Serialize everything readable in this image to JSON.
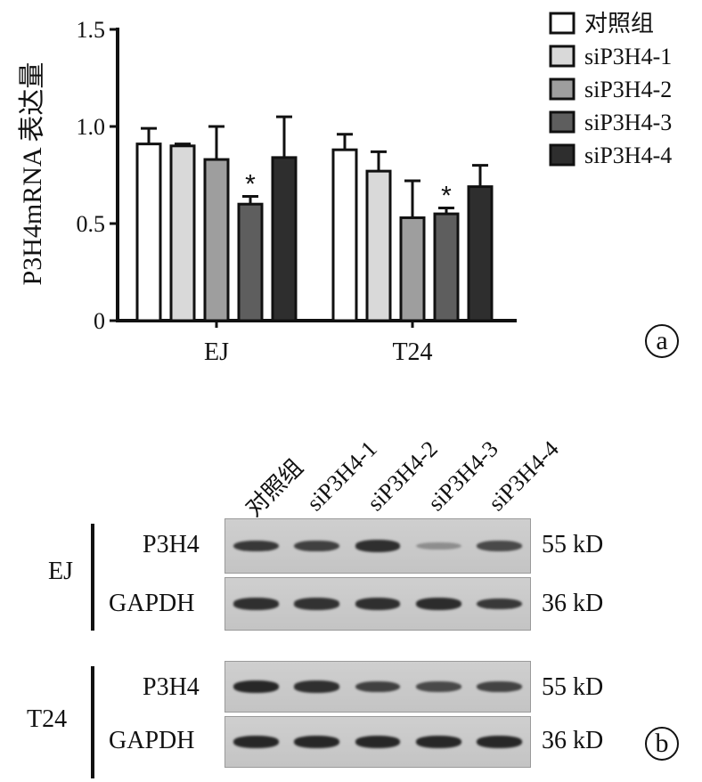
{
  "chart_data": {
    "type": "bar",
    "panel_label": "a",
    "ylabel": "P3H4mRNA 表达量",
    "ylim": [
      0,
      1.5
    ],
    "yticks": [
      "0",
      "0.5",
      "1.0",
      "1.5"
    ],
    "ytick_values": [
      0,
      0.5,
      1.0,
      1.5
    ],
    "categories": [
      "EJ",
      "T24"
    ],
    "legend_position": "top-right",
    "series": [
      {
        "name": "对照组",
        "color": "#ffffff",
        "values": [
          0.91,
          0.88
        ],
        "errors": [
          0.08,
          0.08
        ],
        "sig": [
          "",
          ""
        ]
      },
      {
        "name": "siP3H4-1",
        "color": "#d9d9d9",
        "values": [
          0.9,
          0.77
        ],
        "errors": [
          0.01,
          0.1
        ],
        "sig": [
          "",
          ""
        ]
      },
      {
        "name": "siP3H4-2",
        "color": "#9e9e9e",
        "values": [
          0.83,
          0.53
        ],
        "errors": [
          0.17,
          0.19
        ],
        "sig": [
          "",
          ""
        ]
      },
      {
        "name": "siP3H4-3",
        "color": "#5e5e5e",
        "values": [
          0.6,
          0.55
        ],
        "errors": [
          0.04,
          0.03
        ],
        "sig": [
          "*",
          "*"
        ]
      },
      {
        "name": "siP3H4-4",
        "color": "#2e2e2e",
        "values": [
          0.84,
          0.69
        ],
        "errors": [
          0.21,
          0.11
        ],
        "sig": [
          "",
          ""
        ]
      }
    ]
  },
  "blot": {
    "panel_label": "b",
    "lanes": [
      "对照组",
      "siP3H4-1",
      "siP3H4-2",
      "siP3H4-3",
      "siP3H4-4"
    ],
    "groups": [
      {
        "cell_line": "EJ",
        "rows": [
          {
            "protein": "P3H4",
            "size": "55 kD",
            "intensity": [
              0.85,
              0.8,
              0.9,
              0.35,
              0.75
            ]
          },
          {
            "protein": "GAPDH",
            "size": "36 kD",
            "intensity": [
              0.9,
              0.88,
              0.9,
              0.92,
              0.85
            ]
          }
        ]
      },
      {
        "cell_line": "T24",
        "rows": [
          {
            "protein": "P3H4",
            "size": "55 kD",
            "intensity": [
              0.95,
              0.9,
              0.8,
              0.75,
              0.78
            ]
          },
          {
            "protein": "GAPDH",
            "size": "36 kD",
            "intensity": [
              0.95,
              0.95,
              0.95,
              0.95,
              0.95
            ]
          }
        ]
      }
    ]
  }
}
